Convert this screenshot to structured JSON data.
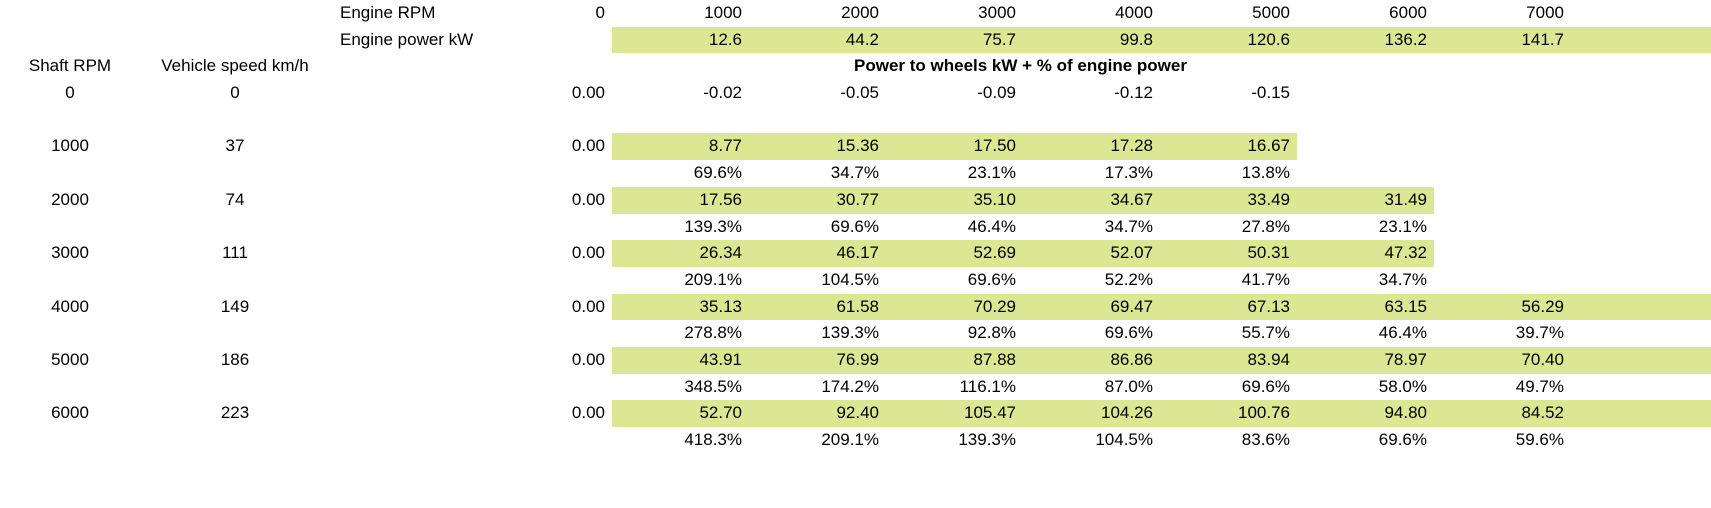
{
  "top": {
    "engine_rpm_label": "Engine RPM",
    "engine_rpm_values": [
      "0",
      "1000",
      "2000",
      "3000",
      "4000",
      "5000",
      "6000",
      "7000"
    ],
    "engine_power_label": "Engine power kW",
    "engine_power_values": [
      "",
      "12.6",
      "44.2",
      "75.7",
      "99.8",
      "120.6",
      "136.2",
      "141.7"
    ]
  },
  "header": {
    "shaft_rpm": "Shaft RPM",
    "vehicle_speed": "Vehicle speed km/h",
    "title": "Power to wheels kW + % of engine power"
  },
  "rows": [
    {
      "shaft_rpm": "0",
      "vehicle_speed": "0",
      "highlighted": false,
      "power": [
        "0.00",
        "-0.02",
        "-0.05",
        "-0.09",
        "-0.12",
        "-0.15",
        "",
        ""
      ],
      "pct": [
        "",
        "",
        "",
        "",
        "",
        "",
        "",
        ""
      ]
    },
    {
      "shaft_rpm": "1000",
      "vehicle_speed": "37",
      "highlighted": true,
      "power": [
        "0.00",
        "8.77",
        "15.36",
        "17.50",
        "17.28",
        "16.67",
        "",
        ""
      ],
      "pct": [
        "",
        "69.6%",
        "34.7%",
        "23.1%",
        "17.3%",
        "13.8%",
        "",
        ""
      ]
    },
    {
      "shaft_rpm": "2000",
      "vehicle_speed": "74",
      "highlighted": true,
      "power": [
        "0.00",
        "17.56",
        "30.77",
        "35.10",
        "34.67",
        "33.49",
        "31.49",
        ""
      ],
      "pct": [
        "",
        "139.3%",
        "69.6%",
        "46.4%",
        "34.7%",
        "27.8%",
        "23.1%",
        ""
      ]
    },
    {
      "shaft_rpm": "3000",
      "vehicle_speed": "111",
      "highlighted": true,
      "power": [
        "0.00",
        "26.34",
        "46.17",
        "52.69",
        "52.07",
        "50.31",
        "47.32",
        ""
      ],
      "pct": [
        "",
        "209.1%",
        "104.5%",
        "69.6%",
        "52.2%",
        "41.7%",
        "34.7%",
        ""
      ]
    },
    {
      "shaft_rpm": "4000",
      "vehicle_speed": "149",
      "highlighted": true,
      "power": [
        "0.00",
        "35.13",
        "61.58",
        "70.29",
        "69.47",
        "67.13",
        "63.15",
        "56.29"
      ],
      "pct": [
        "",
        "278.8%",
        "139.3%",
        "92.8%",
        "69.6%",
        "55.7%",
        "46.4%",
        "39.7%"
      ]
    },
    {
      "shaft_rpm": "5000",
      "vehicle_speed": "186",
      "highlighted": true,
      "power": [
        "0.00",
        "43.91",
        "76.99",
        "87.88",
        "86.86",
        "83.94",
        "78.97",
        "70.40"
      ],
      "pct": [
        "",
        "348.5%",
        "174.2%",
        "116.1%",
        "87.0%",
        "69.6%",
        "58.0%",
        "49.7%"
      ]
    },
    {
      "shaft_rpm": "6000",
      "vehicle_speed": "223",
      "highlighted": true,
      "power": [
        "0.00",
        "52.70",
        "92.40",
        "105.47",
        "104.26",
        "100.76",
        "94.80",
        "84.52"
      ],
      "pct": [
        "",
        "418.3%",
        "209.1%",
        "139.3%",
        "104.5%",
        "83.6%",
        "69.6%",
        "59.6%"
      ]
    }
  ],
  "colors": {
    "highlight": "#dce793"
  }
}
